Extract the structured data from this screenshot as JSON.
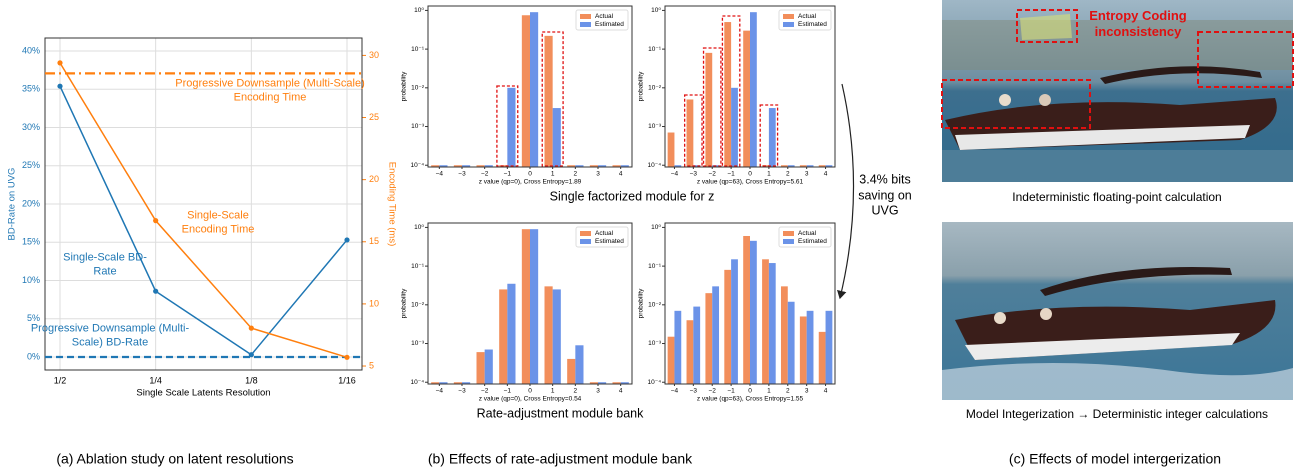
{
  "chart_data": [
    {
      "type": "line",
      "categories": [
        "1/2",
        "1/4",
        "1/8",
        "1/16"
      ],
      "xlabel": "Single Scale Latents Resolution",
      "ylabel": "BD-Rate on UVG",
      "y2label": "Encoding Time (ms)",
      "ylim": [
        -1.7,
        41.7
      ],
      "yticks": [
        {
          "value": 0,
          "label": "0%"
        },
        {
          "value": 5,
          "label": "5%"
        },
        {
          "value": 10,
          "label": "10%"
        },
        {
          "value": 15,
          "label": "15%"
        },
        {
          "value": 20,
          "label": "20%"
        },
        {
          "value": 25,
          "label": "25%"
        },
        {
          "value": 30,
          "label": "30%"
        },
        {
          "value": 35,
          "label": "35%"
        },
        {
          "value": 40,
          "label": "40%"
        }
      ],
      "y2lim": [
        4.68,
        31.4
      ],
      "y2ticks": [
        5,
        10,
        15,
        20,
        25,
        30
      ],
      "grid": true,
      "series": [
        {
          "name": "Single-Scale BD-Rate",
          "color": "#1f77b4",
          "values": [
            35.4,
            8.6,
            0.3,
            15.3
          ]
        },
        {
          "name": "Single-Scale Encoding Time",
          "color": "#ff7f0e",
          "axis": "y2",
          "values": [
            29.4,
            16.7,
            8.05,
            5.7
          ]
        }
      ],
      "hlines": [
        {
          "name": "Progressive Downsample (Multi-Scale) BD-Rate",
          "value": 0,
          "color": "#1f77b4",
          "style": "dashed"
        },
        {
          "name": "Progressive Downsample (Multi-Scale) Encoding Time",
          "value": 28.55,
          "axis": "y2",
          "color": "#ff7f0e",
          "style": "dashdot"
        }
      ]
    },
    {
      "type": "bar",
      "categories": [
        "−4",
        "−3",
        "−2",
        "−1",
        "0",
        "1",
        "2",
        "3",
        "4"
      ],
      "xlabel": "z value (qp=0), Cross Entropy=1.89",
      "ylabel": "probability",
      "log_scale": true,
      "ylim": [
        9e-05,
        1.3
      ],
      "legend": "upper right",
      "yticks": [
        {
          "value": 0.0001,
          "label": "10⁻⁴"
        },
        {
          "value": 0.001,
          "label": "10⁻³"
        },
        {
          "value": 0.01,
          "label": "10⁻²"
        },
        {
          "value": 0.1,
          "label": "10⁻¹"
        },
        {
          "value": 1,
          "label": "10⁰"
        }
      ],
      "series": [
        {
          "name": "Actual",
          "color": "#f28e5b",
          "values": [
            0.0001,
            0.0001,
            0.0001,
            0.0001,
            0.75,
            0.22,
            0.0001,
            0.0001,
            0.0001
          ]
        },
        {
          "name": "Estimated",
          "color": "#6b93e8",
          "values": [
            0.0001,
            0.0001,
            0.0001,
            0.01,
            0.9,
            0.003,
            0.0001,
            0.0001,
            0.0001
          ]
        }
      ]
    },
    {
      "type": "bar",
      "categories": [
        "−4",
        "−3",
        "−2",
        "−1",
        "0",
        "1",
        "2",
        "3",
        "4"
      ],
      "xlabel": "z value (qp=63), Cross Entropy=5.61",
      "ylabel": "probability",
      "log_scale": true,
      "ylim": [
        9e-05,
        1.3
      ],
      "legend": "upper right",
      "yticks": [
        {
          "value": 0.0001,
          "label": "10⁻⁴"
        },
        {
          "value": 0.001,
          "label": "10⁻³"
        },
        {
          "value": 0.01,
          "label": "10⁻²"
        },
        {
          "value": 0.1,
          "label": "10⁻¹"
        },
        {
          "value": 1,
          "label": "10⁰"
        }
      ],
      "series": [
        {
          "name": "Actual",
          "color": "#f28e5b",
          "values": [
            0.0007,
            0.005,
            0.08,
            0.5,
            0.3,
            0.0001,
            0.0001,
            0.0001,
            0.0001
          ]
        },
        {
          "name": "Estimated",
          "color": "#6b93e8",
          "values": [
            0.0001,
            0.0001,
            0.0001,
            0.01,
            0.9,
            0.003,
            0.0001,
            0.0001,
            0.0001
          ]
        }
      ]
    },
    {
      "type": "bar",
      "categories": [
        "−4",
        "−3",
        "−2",
        "−1",
        "0",
        "1",
        "2",
        "3",
        "4"
      ],
      "xlabel": "z value (qp=0), Cross Entropy=0.54",
      "ylabel": "probability",
      "log_scale": true,
      "ylim": [
        9e-05,
        1.3
      ],
      "legend": "upper right",
      "yticks": [
        {
          "value": 0.0001,
          "label": "10⁻⁴"
        },
        {
          "value": 0.001,
          "label": "10⁻³"
        },
        {
          "value": 0.01,
          "label": "10⁻²"
        },
        {
          "value": 0.1,
          "label": "10⁻¹"
        },
        {
          "value": 1,
          "label": "10⁰"
        }
      ],
      "series": [
        {
          "name": "Actual",
          "color": "#f28e5b",
          "values": [
            0.0001,
            0.0001,
            0.0006,
            0.025,
            0.9,
            0.03,
            0.0004,
            0.0001,
            0.0001
          ]
        },
        {
          "name": "Estimated",
          "color": "#6b93e8",
          "values": [
            0.0001,
            0.0001,
            0.0007,
            0.035,
            0.9,
            0.025,
            0.0009,
            0.0001,
            0.0001
          ]
        }
      ]
    },
    {
      "type": "bar",
      "categories": [
        "−4",
        "−3",
        "−2",
        "−1",
        "0",
        "1",
        "2",
        "3",
        "4"
      ],
      "xlabel": "z value (qp=63), Cross Entropy=1.55",
      "ylabel": "probability",
      "log_scale": true,
      "ylim": [
        9e-05,
        1.3
      ],
      "legend": "upper right",
      "yticks": [
        {
          "value": 0.0001,
          "label": "10⁻⁴"
        },
        {
          "value": 0.001,
          "label": "10⁻³"
        },
        {
          "value": 0.01,
          "label": "10⁻²"
        },
        {
          "value": 0.1,
          "label": "10⁻¹"
        },
        {
          "value": 1,
          "label": "10⁰"
        }
      ],
      "series": [
        {
          "name": "Actual",
          "color": "#f28e5b",
          "values": [
            0.0015,
            0.004,
            0.02,
            0.08,
            0.6,
            0.15,
            0.03,
            0.005,
            0.002
          ]
        },
        {
          "name": "Estimated",
          "color": "#6b93e8",
          "values": [
            0.007,
            0.009,
            0.03,
            0.15,
            0.45,
            0.12,
            0.012,
            0.007,
            0.007
          ]
        }
      ]
    }
  ],
  "panel_b": {
    "top_caption": "Single factorized module for z",
    "bottom_caption": "Rate-adjustment module bank",
    "arrow_label": "3.4% bits saving on UVG"
  },
  "panel_c": {
    "annotation": "Entropy Coding inconsistency",
    "top_caption": "Indeterministic floating-point calculation",
    "bottom_caption": "Model Integerization → Deterministic integer calculations"
  },
  "captions": [
    "(a) Ablation study on latent resolutions",
    "(b) Effects of rate-adjustment module bank",
    "(c) Effects of model intergerization"
  ]
}
